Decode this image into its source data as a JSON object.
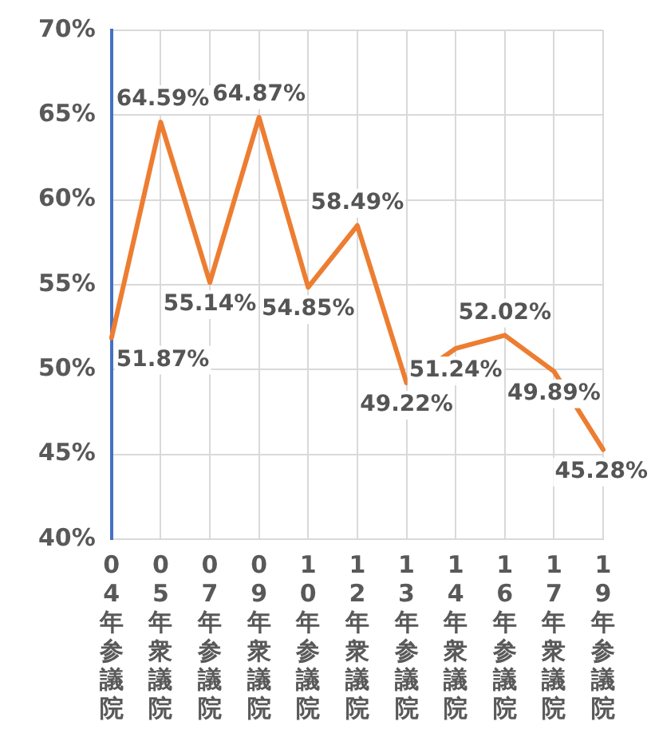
{
  "chart_data": {
    "type": "line",
    "categories": [
      "04年参議院",
      "05年衆議院",
      "07年参議院",
      "09年衆議院",
      "10年参議院",
      "12年衆議院",
      "13年参議院",
      "14年衆議院",
      "16年参議院",
      "17年衆議院",
      "19年参議院"
    ],
    "series": [
      {
        "color": "#ed7d31",
        "values": [
          51.87,
          64.59,
          55.14,
          64.87,
          54.85,
          58.49,
          49.22,
          51.24,
          52.02,
          49.89,
          45.28
        ]
      }
    ],
    "value_labels": [
      "51.87%",
      "64.59%",
      "55.14%",
      "64.87%",
      "54.85%",
      "58.49%",
      "49.22%",
      "51.24%",
      "52.02%",
      "49.89%",
      "45.28%"
    ],
    "ylim": [
      40,
      70
    ],
    "yticks": [
      {
        "value": 40,
        "label": "40%"
      },
      {
        "value": 45,
        "label": "45%"
      },
      {
        "value": 50,
        "label": "50%"
      },
      {
        "value": 55,
        "label": "55%"
      },
      {
        "value": 60,
        "label": "60%"
      },
      {
        "value": 65,
        "label": "65%"
      },
      {
        "value": 70,
        "label": "70%"
      }
    ],
    "grid": true,
    "legend": false,
    "marker": "none",
    "line_style": "solid"
  }
}
